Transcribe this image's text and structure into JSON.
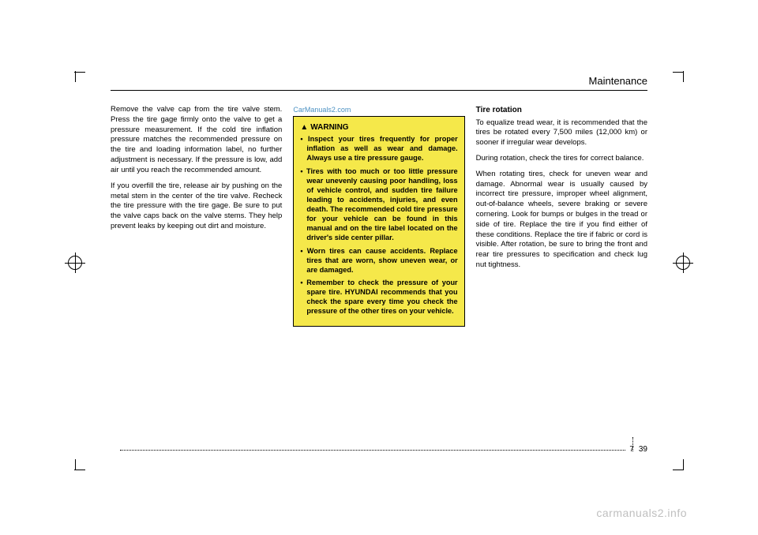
{
  "header": {
    "section": "Maintenance"
  },
  "watermark_top": "CarManuals2.com",
  "watermark_bottom": "carmanuals2.info",
  "col1": {
    "p1": "Remove the valve cap from the tire valve stem. Press the tire gage firmly onto the valve to get a pressure measurement. If the cold tire inflation pressure matches the recommended pressure on the tire and loading information label, no further adjustment is necessary. If the pressure is low, add air until you reach the recommended amount.",
    "p2": "If you overfill the tire, release air by pushing on the metal stem in the center of the tire valve. Recheck the tire pressure with the tire gage. Be sure to put the valve caps back on the valve stems. They help prevent leaks by keeping out dirt and moisture."
  },
  "warning": {
    "title": "WARNING",
    "b1": "Inspect your tires frequently for proper inflation as well as wear and damage. Always use a tire pressure gauge.",
    "b2": "Tires with too much or too little pressure wear unevenly causing poor handling, loss of vehicle control, and sudden tire failure leading to accidents, injuries, and even death. The recommended cold tire pressure for your vehicle can be found in this manual and on the tire label located on the driver's side center pillar.",
    "b3": "Worn tires can cause accidents. Replace tires that are worn, show uneven wear, or are damaged.",
    "b4": "Remember to check the pressure of your spare tire. HYUNDAI recommends that you check the spare every time you check the pressure of the other tires on your vehicle."
  },
  "col3": {
    "heading": "Tire rotation",
    "p1": "To equalize tread wear, it is recommended that the tires be rotated every 7,500 miles (12,000 km) or sooner if irregular wear develops.",
    "p2": "During rotation, check the tires for correct balance.",
    "p3": "When rotating tires, check for uneven wear and damage. Abnormal wear is usually caused by incorrect tire pressure, improper wheel alignment, out-of-balance wheels, severe braking or severe cornering. Look for bumps or bulges in the tread or side of tire. Replace the tire if you find either of these conditions. Replace the tire if fabric or cord is visible. After rotation, be sure to bring the front and rear tire pressures to specification and check lug nut tightness."
  },
  "pagenum": {
    "chapter": "7",
    "page": "39"
  },
  "colors": {
    "warning_bg": "#f5e84a",
    "text": "#000000",
    "link": "#4a90c2",
    "wm": "#bfbfbf"
  }
}
